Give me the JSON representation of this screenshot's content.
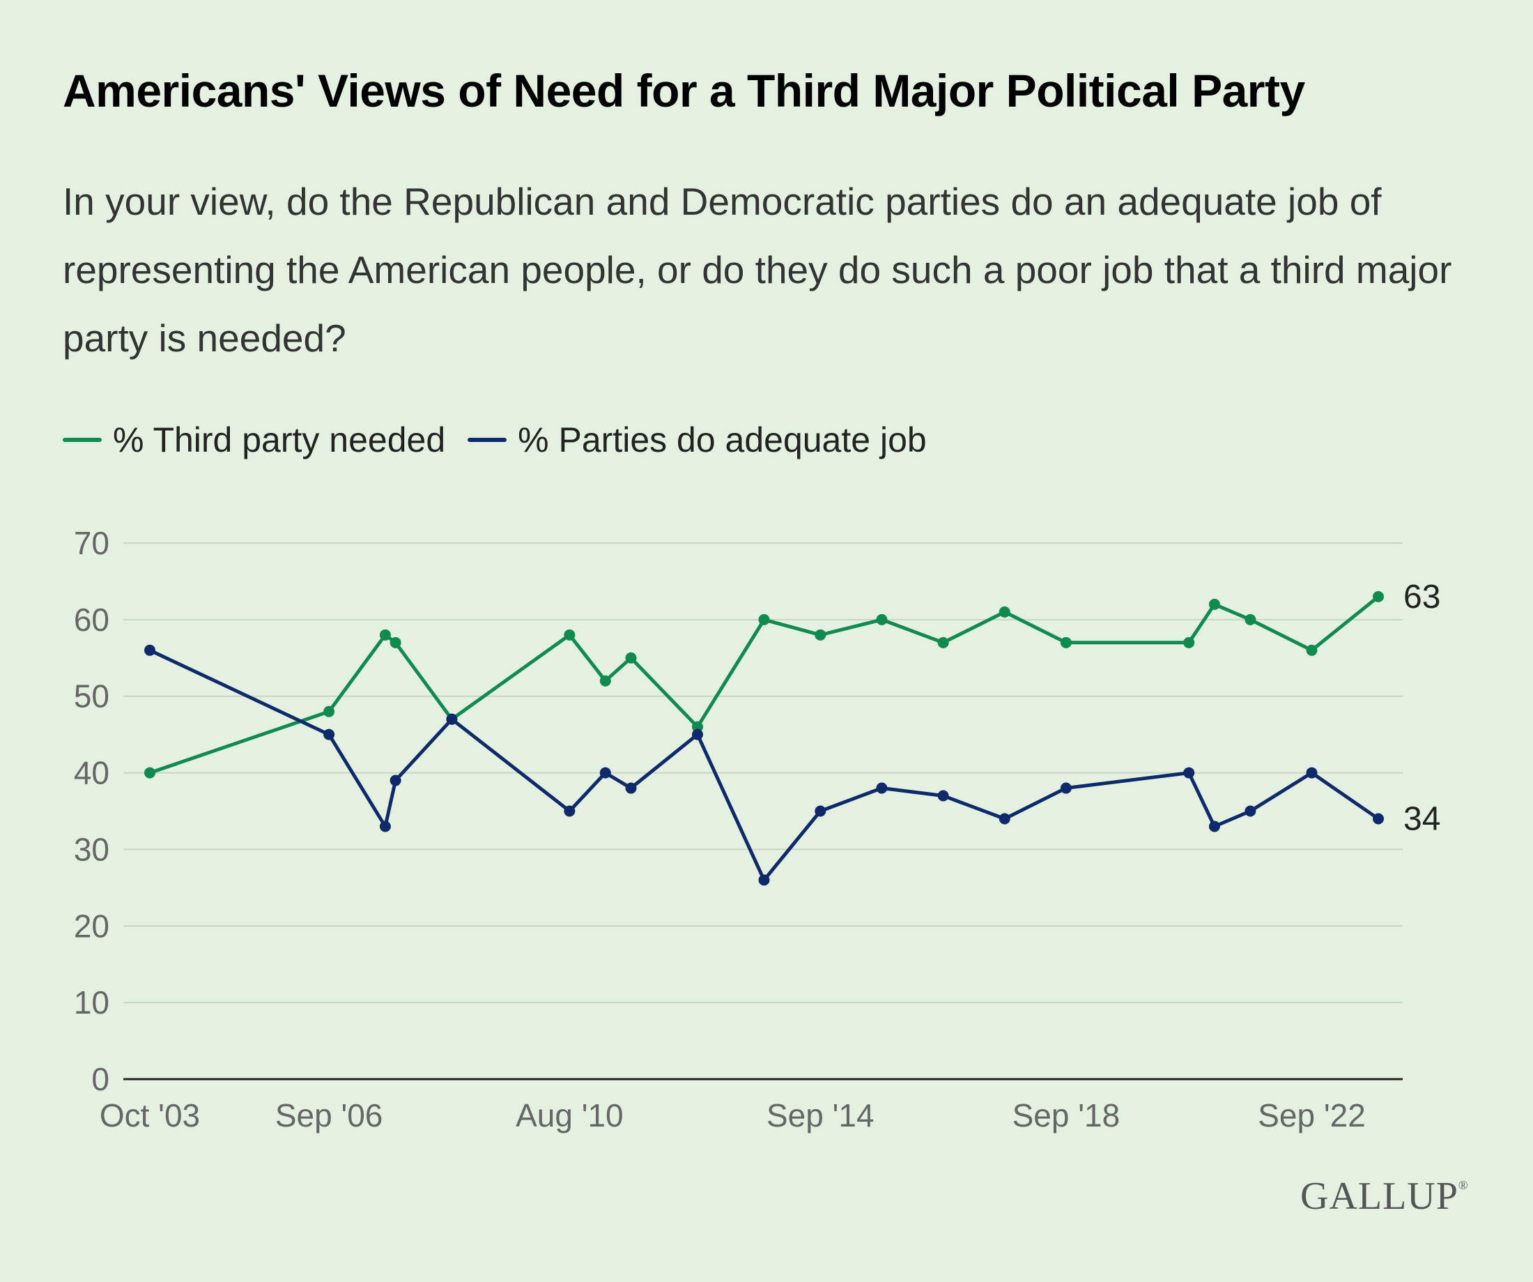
{
  "chart_data": {
    "type": "line",
    "title": "Americans' Views of Need for a Third Major Political Party",
    "subtitle": "In your view, do the Republican and Democratic parties do an adequate job of representing the American people, or do they do such a poor job that a third major party is needed?",
    "xlabel": "",
    "ylabel": "",
    "ylim": [
      0,
      70
    ],
    "yticks": [
      0,
      10,
      20,
      30,
      40,
      50,
      60,
      70
    ],
    "xlim": [
      "2003-10",
      "2023-10"
    ],
    "xticks": [
      {
        "date": "2003-10",
        "label": "Oct '03"
      },
      {
        "date": "2006-09",
        "label": "Sep '06"
      },
      {
        "date": "2010-08",
        "label": "Aug '10"
      },
      {
        "date": "2014-09",
        "label": "Sep '14"
      },
      {
        "date": "2018-09",
        "label": "Sep '18"
      },
      {
        "date": "2022-09",
        "label": "Sep '22"
      }
    ],
    "grid": true,
    "legend_position": "top-left",
    "series": [
      {
        "name": "% Third party needed",
        "color": "#108a4e",
        "end_label": "63",
        "points": [
          {
            "x": "2003-10",
            "y": 40
          },
          {
            "x": "2006-09",
            "y": 48
          },
          {
            "x": "2007-08",
            "y": 58
          },
          {
            "x": "2007-10",
            "y": 57
          },
          {
            "x": "2008-09",
            "y": 47
          },
          {
            "x": "2010-08",
            "y": 58
          },
          {
            "x": "2011-03",
            "y": 52
          },
          {
            "x": "2011-08",
            "y": 55
          },
          {
            "x": "2012-09",
            "y": 46
          },
          {
            "x": "2013-10",
            "y": 60
          },
          {
            "x": "2014-09",
            "y": 58
          },
          {
            "x": "2015-09",
            "y": 60
          },
          {
            "x": "2016-09",
            "y": 57
          },
          {
            "x": "2017-09",
            "y": 61
          },
          {
            "x": "2018-09",
            "y": 57
          },
          {
            "x": "2020-09",
            "y": 57
          },
          {
            "x": "2021-02",
            "y": 62
          },
          {
            "x": "2021-09",
            "y": 60
          },
          {
            "x": "2022-09",
            "y": 56
          },
          {
            "x": "2023-10",
            "y": 63
          }
        ]
      },
      {
        "name": "% Parties do adequate job",
        "color": "#0f2a6b",
        "end_label": "34",
        "points": [
          {
            "x": "2003-10",
            "y": 56
          },
          {
            "x": "2006-09",
            "y": 45
          },
          {
            "x": "2007-08",
            "y": 33
          },
          {
            "x": "2007-10",
            "y": 39
          },
          {
            "x": "2008-09",
            "y": 47
          },
          {
            "x": "2010-08",
            "y": 35
          },
          {
            "x": "2011-03",
            "y": 40
          },
          {
            "x": "2011-08",
            "y": 38
          },
          {
            "x": "2012-09",
            "y": 45
          },
          {
            "x": "2013-10",
            "y": 26
          },
          {
            "x": "2014-09",
            "y": 35
          },
          {
            "x": "2015-09",
            "y": 38
          },
          {
            "x": "2016-09",
            "y": 37
          },
          {
            "x": "2017-09",
            "y": 34
          },
          {
            "x": "2018-09",
            "y": 38
          },
          {
            "x": "2020-09",
            "y": 40
          },
          {
            "x": "2021-02",
            "y": 33
          },
          {
            "x": "2021-09",
            "y": 35
          },
          {
            "x": "2022-09",
            "y": 40
          },
          {
            "x": "2023-10",
            "y": 34
          }
        ]
      }
    ]
  },
  "legend": {
    "items": [
      {
        "label": "% Third party needed",
        "color": "#108a4e"
      },
      {
        "label": "% Parties do adequate job",
        "color": "#0f2a6b"
      }
    ]
  },
  "footer": {
    "logo_text": "GALLUP",
    "logo_mark": "®"
  }
}
